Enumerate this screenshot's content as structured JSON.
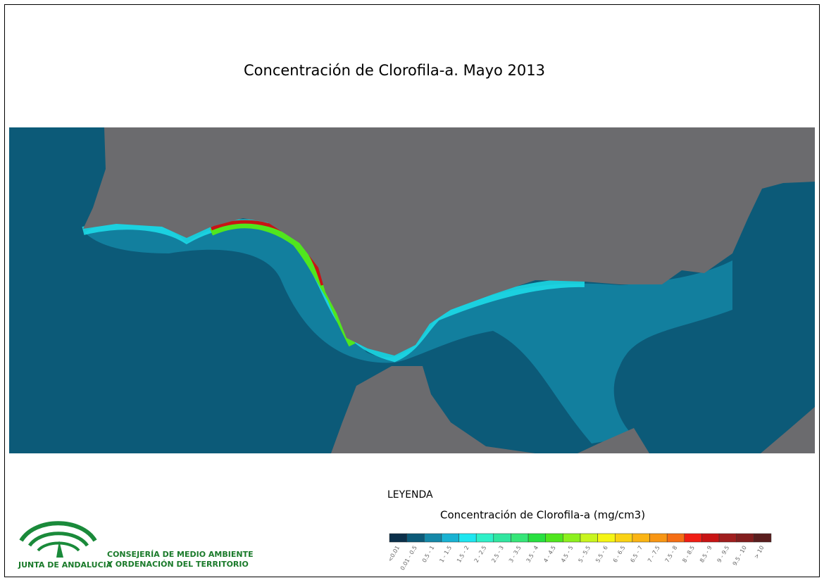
{
  "header": {
    "title": "Concentración de Clorofila-a. Mayo 2013"
  },
  "legend": {
    "heading": "LEYENDA",
    "title": "Concentración de Clorofila-a (mg/cm3)",
    "classes": [
      {
        "label": "<0.01",
        "color": "#0b2f4a"
      },
      {
        "label": "0.01 - 0.5",
        "color": "#0c5a78"
      },
      {
        "label": "0.5 - 1",
        "color": "#1488a8"
      },
      {
        "label": "1 - 1.5",
        "color": "#19b2d2"
      },
      {
        "label": "1.5 - 2",
        "color": "#1ee6f0"
      },
      {
        "label": "2 - 2.5",
        "color": "#2ef0c8"
      },
      {
        "label": "2.5 - 3",
        "color": "#30e6a0"
      },
      {
        "label": "3 - 3.5",
        "color": "#36e678"
      },
      {
        "label": "3.5 - 4",
        "color": "#28e040"
      },
      {
        "label": "4 - 4.5",
        "color": "#50e61e"
      },
      {
        "label": "4.5 - 5",
        "color": "#8cf01e"
      },
      {
        "label": "5 - 5.5",
        "color": "#c8f51e"
      },
      {
        "label": "5.5 - 6",
        "color": "#f5f514"
      },
      {
        "label": "6 - 6.5",
        "color": "#fad214"
      },
      {
        "label": "6.5 - 7",
        "color": "#fab414"
      },
      {
        "label": "7 - 7.5",
        "color": "#f89614"
      },
      {
        "label": "7.5 - 8",
        "color": "#f56e14"
      },
      {
        "label": "8 - 8.5",
        "color": "#f01e14"
      },
      {
        "label": "8.5 - 9",
        "color": "#c81414"
      },
      {
        "label": "9 - 9.5",
        "color": "#a01e1e"
      },
      {
        "label": "9.5 - 10",
        "color": "#821e1e"
      },
      {
        "label": "> 10",
        "color": "#5a1e1e"
      }
    ]
  },
  "logo": {
    "name": "JUNTA DE ANDALUCIA",
    "line1": "CONSEJERÍA DE MEDIO AMBIENTE",
    "line2": "Y ORDENACIÓN DEL TERRITORIO"
  }
}
